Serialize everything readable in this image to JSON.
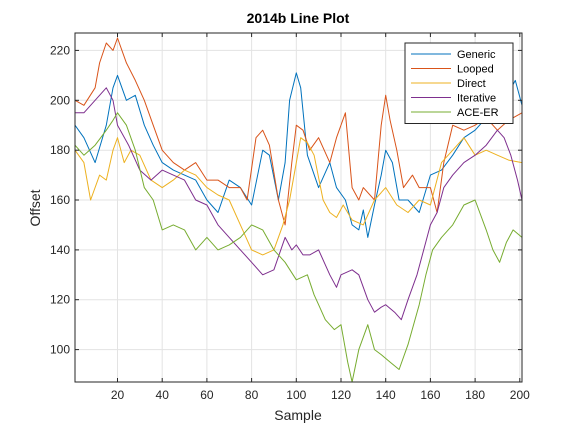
{
  "chart_data": {
    "type": "line",
    "title": "2014b Line Plot",
    "xlabel": "Sample",
    "ylabel": "Offset",
    "xlim": [
      1,
      201
    ],
    "ylim": [
      87,
      227
    ],
    "xticks": [
      20,
      40,
      60,
      80,
      100,
      120,
      140,
      160,
      180,
      200
    ],
    "yticks": [
      100,
      120,
      140,
      160,
      180,
      200,
      220
    ],
    "grid": true,
    "legend_position": "top-right",
    "series": [
      {
        "name": "Generic",
        "color": "#0072BD",
        "points": [
          [
            1,
            190
          ],
          [
            5,
            185
          ],
          [
            10,
            175
          ],
          [
            15,
            190
          ],
          [
            18,
            205
          ],
          [
            20,
            210
          ],
          [
            24,
            200
          ],
          [
            28,
            202
          ],
          [
            32,
            190
          ],
          [
            36,
            182
          ],
          [
            40,
            175
          ],
          [
            45,
            172
          ],
          [
            50,
            170
          ],
          [
            55,
            168
          ],
          [
            60,
            160
          ],
          [
            65,
            155
          ],
          [
            70,
            168
          ],
          [
            75,
            165
          ],
          [
            80,
            158
          ],
          [
            85,
            180
          ],
          [
            88,
            178
          ],
          [
            92,
            160
          ],
          [
            95,
            175
          ],
          [
            97,
            200
          ],
          [
            100,
            211
          ],
          [
            102,
            205
          ],
          [
            105,
            178
          ],
          [
            110,
            165
          ],
          [
            115,
            175
          ],
          [
            118,
            165
          ],
          [
            122,
            160
          ],
          [
            125,
            150
          ],
          [
            128,
            148
          ],
          [
            130,
            156
          ],
          [
            132,
            145
          ],
          [
            135,
            158
          ],
          [
            138,
            170
          ],
          [
            140,
            180
          ],
          [
            143,
            175
          ],
          [
            146,
            160
          ],
          [
            150,
            160
          ],
          [
            155,
            155
          ],
          [
            160,
            170
          ],
          [
            165,
            172
          ],
          [
            170,
            178
          ],
          [
            175,
            185
          ],
          [
            180,
            188
          ],
          [
            185,
            193
          ],
          [
            190,
            200
          ],
          [
            195,
            203
          ],
          [
            198,
            208
          ],
          [
            201,
            198
          ]
        ]
      },
      {
        "name": "Looped",
        "color": "#D95319",
        "points": [
          [
            1,
            200
          ],
          [
            5,
            198
          ],
          [
            10,
            205
          ],
          [
            12,
            215
          ],
          [
            15,
            223
          ],
          [
            18,
            220
          ],
          [
            20,
            225
          ],
          [
            24,
            215
          ],
          [
            28,
            208
          ],
          [
            32,
            200
          ],
          [
            36,
            190
          ],
          [
            40,
            180
          ],
          [
            45,
            175
          ],
          [
            50,
            172
          ],
          [
            55,
            175
          ],
          [
            60,
            168
          ],
          [
            65,
            168
          ],
          [
            70,
            165
          ],
          [
            75,
            165
          ],
          [
            78,
            160
          ],
          [
            82,
            185
          ],
          [
            85,
            188
          ],
          [
            88,
            182
          ],
          [
            92,
            160
          ],
          [
            95,
            150
          ],
          [
            98,
            175
          ],
          [
            100,
            190
          ],
          [
            103,
            188
          ],
          [
            106,
            180
          ],
          [
            110,
            185
          ],
          [
            115,
            175
          ],
          [
            118,
            185
          ],
          [
            122,
            195
          ],
          [
            125,
            165
          ],
          [
            128,
            160
          ],
          [
            130,
            165
          ],
          [
            135,
            160
          ],
          [
            138,
            190
          ],
          [
            140,
            202
          ],
          [
            142,
            192
          ],
          [
            145,
            180
          ],
          [
            148,
            165
          ],
          [
            152,
            170
          ],
          [
            155,
            165
          ],
          [
            160,
            165
          ],
          [
            163,
            155
          ],
          [
            166,
            175
          ],
          [
            170,
            190
          ],
          [
            175,
            188
          ],
          [
            180,
            190
          ],
          [
            185,
            193
          ],
          [
            190,
            188
          ],
          [
            195,
            192
          ],
          [
            201,
            195
          ]
        ]
      },
      {
        "name": "Direct",
        "color": "#EDB120",
        "points": [
          [
            1,
            180
          ],
          [
            5,
            175
          ],
          [
            8,
            160
          ],
          [
            12,
            170
          ],
          [
            15,
            168
          ],
          [
            18,
            180
          ],
          [
            20,
            185
          ],
          [
            23,
            175
          ],
          [
            26,
            180
          ],
          [
            30,
            178
          ],
          [
            35,
            168
          ],
          [
            40,
            165
          ],
          [
            45,
            168
          ],
          [
            50,
            172
          ],
          [
            55,
            170
          ],
          [
            60,
            165
          ],
          [
            65,
            162
          ],
          [
            70,
            160
          ],
          [
            75,
            150
          ],
          [
            80,
            140
          ],
          [
            85,
            138
          ],
          [
            90,
            140
          ],
          [
            94,
            150
          ],
          [
            97,
            160
          ],
          [
            100,
            175
          ],
          [
            102,
            185
          ],
          [
            105,
            183
          ],
          [
            108,
            178
          ],
          [
            112,
            160
          ],
          [
            115,
            155
          ],
          [
            118,
            153
          ],
          [
            121,
            158
          ],
          [
            125,
            152
          ],
          [
            130,
            150
          ],
          [
            135,
            160
          ],
          [
            140,
            165
          ],
          [
            145,
            158
          ],
          [
            150,
            155
          ],
          [
            155,
            160
          ],
          [
            160,
            158
          ],
          [
            165,
            175
          ],
          [
            170,
            180
          ],
          [
            175,
            185
          ],
          [
            180,
            178
          ],
          [
            185,
            180
          ],
          [
            190,
            178
          ],
          [
            195,
            176
          ],
          [
            201,
            175
          ]
        ]
      },
      {
        "name": "Iterative",
        "color": "#7E2F8E",
        "points": [
          [
            1,
            195
          ],
          [
            5,
            195
          ],
          [
            10,
            200
          ],
          [
            15,
            205
          ],
          [
            18,
            200
          ],
          [
            20,
            190
          ],
          [
            25,
            182
          ],
          [
            30,
            172
          ],
          [
            35,
            168
          ],
          [
            40,
            172
          ],
          [
            45,
            170
          ],
          [
            50,
            168
          ],
          [
            55,
            160
          ],
          [
            60,
            158
          ],
          [
            65,
            150
          ],
          [
            70,
            145
          ],
          [
            75,
            140
          ],
          [
            80,
            135
          ],
          [
            85,
            130
          ],
          [
            90,
            132
          ],
          [
            95,
            145
          ],
          [
            98,
            140
          ],
          [
            100,
            142
          ],
          [
            103,
            138
          ],
          [
            106,
            138
          ],
          [
            110,
            140
          ],
          [
            115,
            130
          ],
          [
            118,
            125
          ],
          [
            120,
            130
          ],
          [
            125,
            132
          ],
          [
            128,
            130
          ],
          [
            132,
            120
          ],
          [
            135,
            115
          ],
          [
            138,
            117
          ],
          [
            140,
            118
          ],
          [
            144,
            115
          ],
          [
            147,
            112
          ],
          [
            150,
            120
          ],
          [
            154,
            130
          ],
          [
            157,
            140
          ],
          [
            160,
            150
          ],
          [
            163,
            155
          ],
          [
            166,
            165
          ],
          [
            170,
            170
          ],
          [
            175,
            175
          ],
          [
            180,
            178
          ],
          [
            185,
            182
          ],
          [
            190,
            188
          ],
          [
            193,
            185
          ],
          [
            196,
            178
          ],
          [
            199,
            168
          ],
          [
            201,
            160
          ]
        ]
      },
      {
        "name": "ACE-ER",
        "color": "#77AC30",
        "points": [
          [
            1,
            182
          ],
          [
            5,
            178
          ],
          [
            10,
            182
          ],
          [
            15,
            188
          ],
          [
            18,
            192
          ],
          [
            20,
            195
          ],
          [
            24,
            190
          ],
          [
            28,
            180
          ],
          [
            32,
            165
          ],
          [
            36,
            160
          ],
          [
            40,
            148
          ],
          [
            45,
            150
          ],
          [
            50,
            148
          ],
          [
            55,
            140
          ],
          [
            60,
            145
          ],
          [
            65,
            140
          ],
          [
            70,
            142
          ],
          [
            75,
            145
          ],
          [
            80,
            150
          ],
          [
            85,
            148
          ],
          [
            90,
            140
          ],
          [
            95,
            135
          ],
          [
            100,
            128
          ],
          [
            105,
            130
          ],
          [
            108,
            122
          ],
          [
            110,
            118
          ],
          [
            113,
            112
          ],
          [
            117,
            108
          ],
          [
            120,
            110
          ],
          [
            123,
            95
          ],
          [
            125,
            87
          ],
          [
            128,
            100
          ],
          [
            132,
            110
          ],
          [
            135,
            100
          ],
          [
            138,
            98
          ],
          [
            142,
            95
          ],
          [
            146,
            92
          ],
          [
            150,
            102
          ],
          [
            155,
            118
          ],
          [
            158,
            130
          ],
          [
            161,
            140
          ],
          [
            165,
            145
          ],
          [
            170,
            150
          ],
          [
            175,
            158
          ],
          [
            180,
            160
          ],
          [
            185,
            148
          ],
          [
            188,
            140
          ],
          [
            191,
            135
          ],
          [
            194,
            143
          ],
          [
            197,
            148
          ],
          [
            201,
            145
          ]
        ]
      }
    ]
  }
}
